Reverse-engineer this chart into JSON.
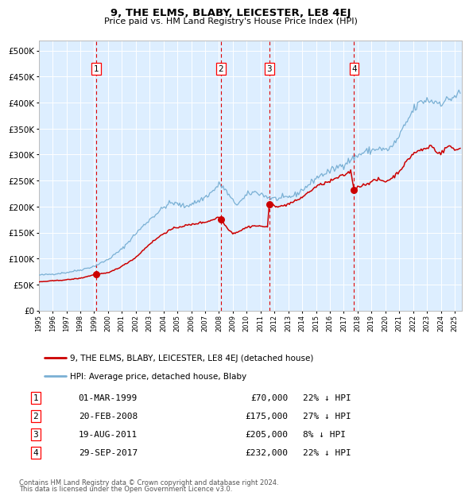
{
  "title": "9, THE ELMS, BLABY, LEICESTER, LE8 4EJ",
  "subtitle": "Price paid vs. HM Land Registry's House Price Index (HPI)",
  "legend_line1": "9, THE ELMS, BLABY, LEICESTER, LE8 4EJ (detached house)",
  "legend_line2": "HPI: Average price, detached house, Blaby",
  "footer_line1": "Contains HM Land Registry data © Crown copyright and database right 2024.",
  "footer_line2": "This data is licensed under the Open Government Licence v3.0.",
  "table_rows": [
    [
      "1",
      "01-MAR-1999",
      "£70,000",
      "22% ↓ HPI"
    ],
    [
      "2",
      "20-FEB-2008",
      "£175,000",
      "27% ↓ HPI"
    ],
    [
      "3",
      "19-AUG-2011",
      "£205,000",
      "8% ↓ HPI"
    ],
    [
      "4",
      "29-SEP-2017",
      "£232,000",
      "22% ↓ HPI"
    ]
  ],
  "sale_dates_num": [
    1999.167,
    2008.126,
    2011.635,
    2017.747
  ],
  "sale_prices": [
    70000,
    175000,
    205000,
    232000
  ],
  "vline_dates": [
    1999.167,
    2008.126,
    2011.635,
    2017.747
  ],
  "red_line_color": "#cc0000",
  "blue_line_color": "#7ab0d4",
  "plot_bg_color": "#ddeeff",
  "ylim": [
    0,
    520000
  ],
  "xlim_start": 1995.0,
  "xlim_end": 2025.5,
  "hpi_anchors": [
    [
      1995.0,
      68000
    ],
    [
      1996.0,
      70000
    ],
    [
      1997.0,
      73000
    ],
    [
      1998.0,
      78000
    ],
    [
      1999.0,
      85000
    ],
    [
      2000.0,
      98000
    ],
    [
      2001.0,
      118000
    ],
    [
      2002.0,
      148000
    ],
    [
      2003.0,
      175000
    ],
    [
      2004.0,
      198000
    ],
    [
      2004.5,
      207000
    ],
    [
      2005.0,
      205000
    ],
    [
      2005.5,
      200000
    ],
    [
      2006.0,
      205000
    ],
    [
      2006.5,
      210000
    ],
    [
      2007.0,
      218000
    ],
    [
      2007.5,
      228000
    ],
    [
      2008.0,
      242000
    ],
    [
      2008.3,
      238000
    ],
    [
      2008.8,
      218000
    ],
    [
      2009.0,
      210000
    ],
    [
      2009.3,
      205000
    ],
    [
      2009.8,
      215000
    ],
    [
      2010.0,
      222000
    ],
    [
      2010.5,
      228000
    ],
    [
      2011.0,
      225000
    ],
    [
      2011.5,
      218000
    ],
    [
      2012.0,
      215000
    ],
    [
      2012.5,
      215000
    ],
    [
      2013.0,
      218000
    ],
    [
      2013.5,
      222000
    ],
    [
      2014.0,
      232000
    ],
    [
      2014.5,
      242000
    ],
    [
      2015.0,
      255000
    ],
    [
      2015.5,
      262000
    ],
    [
      2016.0,
      268000
    ],
    [
      2016.5,
      275000
    ],
    [
      2017.0,
      282000
    ],
    [
      2017.5,
      290000
    ],
    [
      2018.0,
      298000
    ],
    [
      2018.5,
      305000
    ],
    [
      2019.0,
      308000
    ],
    [
      2019.5,
      312000
    ],
    [
      2020.0,
      308000
    ],
    [
      2020.5,
      315000
    ],
    [
      2021.0,
      335000
    ],
    [
      2021.5,
      360000
    ],
    [
      2022.0,
      385000
    ],
    [
      2022.5,
      400000
    ],
    [
      2023.0,
      405000
    ],
    [
      2023.5,
      402000
    ],
    [
      2024.0,
      400000
    ],
    [
      2024.5,
      405000
    ],
    [
      2025.0,
      412000
    ],
    [
      2025.4,
      418000
    ]
  ],
  "red_anchors": [
    [
      1995.0,
      55000
    ],
    [
      1996.0,
      57000
    ],
    [
      1997.0,
      59000
    ],
    [
      1998.0,
      62000
    ],
    [
      1999.167,
      70000
    ],
    [
      2000.0,
      72000
    ],
    [
      2001.0,
      85000
    ],
    [
      2002.0,
      102000
    ],
    [
      2003.0,
      128000
    ],
    [
      2004.0,
      148000
    ],
    [
      2004.5,
      155000
    ],
    [
      2005.0,
      160000
    ],
    [
      2005.5,
      163000
    ],
    [
      2006.0,
      165000
    ],
    [
      2006.5,
      168000
    ],
    [
      2007.0,
      170000
    ],
    [
      2007.5,
      174000
    ],
    [
      2008.0,
      180000
    ],
    [
      2008.126,
      175000
    ],
    [
      2008.5,
      162000
    ],
    [
      2009.0,
      148000
    ],
    [
      2009.5,
      153000
    ],
    [
      2010.0,
      160000
    ],
    [
      2010.5,
      163000
    ],
    [
      2011.0,
      162000
    ],
    [
      2011.5,
      161000
    ],
    [
      2011.635,
      205000
    ],
    [
      2012.0,
      202000
    ],
    [
      2012.5,
      200000
    ],
    [
      2013.0,
      205000
    ],
    [
      2013.5,
      210000
    ],
    [
      2014.0,
      218000
    ],
    [
      2014.5,
      228000
    ],
    [
      2015.0,
      238000
    ],
    [
      2015.5,
      244000
    ],
    [
      2016.0,
      248000
    ],
    [
      2016.5,
      255000
    ],
    [
      2017.0,
      260000
    ],
    [
      2017.5,
      268000
    ],
    [
      2017.747,
      232000
    ],
    [
      2018.0,
      238000
    ],
    [
      2018.5,
      242000
    ],
    [
      2019.0,
      248000
    ],
    [
      2019.5,
      252000
    ],
    [
      2020.0,
      248000
    ],
    [
      2020.5,
      255000
    ],
    [
      2021.0,
      268000
    ],
    [
      2021.5,
      285000
    ],
    [
      2022.0,
      302000
    ],
    [
      2022.5,
      308000
    ],
    [
      2023.0,
      312000
    ],
    [
      2023.3,
      318000
    ],
    [
      2023.6,
      308000
    ],
    [
      2024.0,
      302000
    ],
    [
      2024.3,
      310000
    ],
    [
      2024.6,
      318000
    ],
    [
      2025.0,
      308000
    ],
    [
      2025.4,
      312000
    ]
  ]
}
